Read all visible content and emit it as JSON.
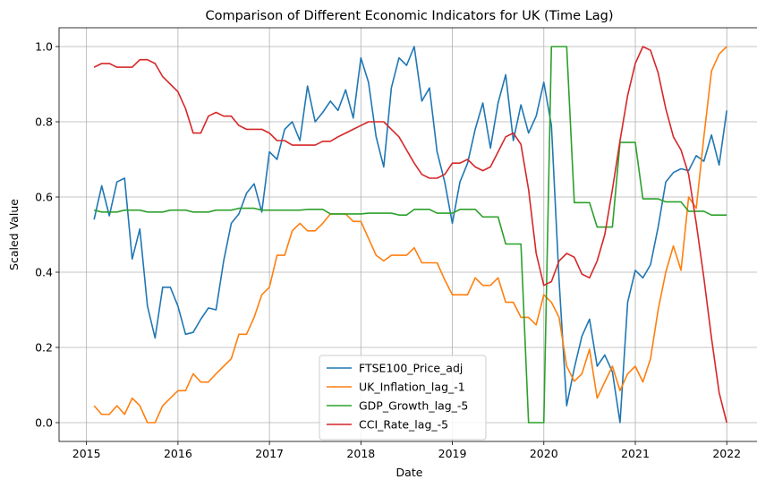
{
  "chart_data": {
    "type": "line",
    "title": "Comparison of Different Economic Indicators for UK (Time Lag)",
    "xlabel": "Date",
    "ylabel": "Scaled Value",
    "xlim": [
      2014.7,
      2022.35
    ],
    "ylim": [
      -0.05,
      1.05
    ],
    "x_ticks": [
      2015,
      2016,
      2017,
      2018,
      2019,
      2020,
      2021,
      2022
    ],
    "x_tick_labels": [
      "2015",
      "2016",
      "2017",
      "2018",
      "2019",
      "2020",
      "2021",
      "2022"
    ],
    "y_ticks": [
      0.0,
      0.2,
      0.4,
      0.6,
      0.8,
      1.0
    ],
    "y_tick_labels": [
      "0.0",
      "0.2",
      "0.4",
      "0.6",
      "0.8",
      "1.0"
    ],
    "grid": true,
    "legend_position": "lower-center",
    "x_start": 2015.083,
    "x_step": 0.0833333,
    "series": [
      {
        "name": "FTSE100_Price_adj",
        "color": "#1f77b4",
        "values": [
          0.54,
          0.63,
          0.55,
          0.64,
          0.65,
          0.435,
          0.515,
          0.31,
          0.225,
          0.36,
          0.36,
          0.31,
          0.235,
          0.24,
          0.275,
          0.305,
          0.3,
          0.43,
          0.53,
          0.555,
          0.61,
          0.635,
          0.56,
          0.72,
          0.7,
          0.78,
          0.8,
          0.75,
          0.895,
          0.8,
          0.825,
          0.855,
          0.83,
          0.885,
          0.81,
          0.97,
          0.905,
          0.76,
          0.68,
          0.89,
          0.97,
          0.95,
          1.0,
          0.855,
          0.89,
          0.72,
          0.64,
          0.53,
          0.64,
          0.69,
          0.78,
          0.85,
          0.73,
          0.85,
          0.925,
          0.75,
          0.845,
          0.77,
          0.815,
          0.905,
          0.79,
          0.38,
          0.045,
          0.145,
          0.23,
          0.275,
          0.15,
          0.18,
          0.135,
          0.0,
          0.32,
          0.405,
          0.385,
          0.42,
          0.52,
          0.64,
          0.665,
          0.675,
          0.67,
          0.71,
          0.695,
          0.765,
          0.685,
          0.83
        ]
      },
      {
        "name": "UK_Inflation_lag_-1",
        "color": "#ff7f0e",
        "values": [
          0.045,
          0.022,
          0.022,
          0.045,
          0.022,
          0.065,
          0.045,
          0.0,
          0.0,
          0.045,
          0.065,
          0.085,
          0.085,
          0.13,
          0.108,
          0.108,
          0.13,
          0.15,
          0.17,
          0.235,
          0.235,
          0.28,
          0.34,
          0.36,
          0.445,
          0.445,
          0.51,
          0.53,
          0.51,
          0.51,
          0.53,
          0.555,
          0.555,
          0.555,
          0.535,
          0.535,
          0.49,
          0.445,
          0.43,
          0.445,
          0.445,
          0.445,
          0.465,
          0.425,
          0.425,
          0.425,
          0.38,
          0.34,
          0.34,
          0.34,
          0.385,
          0.365,
          0.365,
          0.385,
          0.32,
          0.32,
          0.28,
          0.28,
          0.26,
          0.34,
          0.32,
          0.28,
          0.15,
          0.11,
          0.13,
          0.195,
          0.065,
          0.108,
          0.15,
          0.085,
          0.13,
          0.15,
          0.108,
          0.17,
          0.3,
          0.4,
          0.47,
          0.405,
          0.6,
          0.57,
          0.76,
          0.935,
          0.98,
          1.0
        ]
      },
      {
        "name": "GDP_Growth_lag_-5",
        "color": "#2ca02c",
        "values": [
          0.565,
          0.56,
          0.56,
          0.56,
          0.565,
          0.565,
          0.565,
          0.56,
          0.56,
          0.56,
          0.565,
          0.565,
          0.565,
          0.56,
          0.56,
          0.56,
          0.565,
          0.565,
          0.565,
          0.57,
          0.57,
          0.57,
          0.565,
          0.565,
          0.565,
          0.565,
          0.565,
          0.565,
          0.567,
          0.567,
          0.567,
          0.555,
          0.555,
          0.555,
          0.555,
          0.555,
          0.557,
          0.557,
          0.557,
          0.557,
          0.552,
          0.552,
          0.567,
          0.567,
          0.567,
          0.557,
          0.557,
          0.557,
          0.567,
          0.567,
          0.567,
          0.547,
          0.547,
          0.547,
          0.475,
          0.475,
          0.475,
          0.0,
          0.0,
          0.0,
          1.0,
          1.0,
          1.0,
          0.585,
          0.585,
          0.585,
          0.52,
          0.52,
          0.52,
          0.745,
          0.745,
          0.745,
          0.595,
          0.595,
          0.595,
          0.587,
          0.587,
          0.587,
          0.562,
          0.562,
          0.562,
          0.552,
          0.552,
          0.552
        ]
      },
      {
        "name": "CCI_Rate_lag_-5",
        "color": "#d62728",
        "values": [
          0.945,
          0.955,
          0.955,
          0.945,
          0.945,
          0.945,
          0.965,
          0.965,
          0.955,
          0.92,
          0.9,
          0.88,
          0.835,
          0.77,
          0.77,
          0.815,
          0.825,
          0.815,
          0.815,
          0.79,
          0.78,
          0.78,
          0.78,
          0.77,
          0.75,
          0.75,
          0.738,
          0.738,
          0.738,
          0.738,
          0.748,
          0.748,
          0.76,
          0.77,
          0.78,
          0.79,
          0.8,
          0.8,
          0.8,
          0.78,
          0.76,
          0.725,
          0.69,
          0.66,
          0.65,
          0.65,
          0.66,
          0.69,
          0.69,
          0.7,
          0.68,
          0.67,
          0.68,
          0.72,
          0.76,
          0.77,
          0.74,
          0.62,
          0.45,
          0.365,
          0.375,
          0.43,
          0.45,
          0.44,
          0.395,
          0.385,
          0.43,
          0.5,
          0.62,
          0.75,
          0.87,
          0.955,
          1.0,
          0.99,
          0.93,
          0.835,
          0.76,
          0.725,
          0.66,
          0.53,
          0.385,
          0.225,
          0.08,
          0.0
        ]
      }
    ]
  }
}
